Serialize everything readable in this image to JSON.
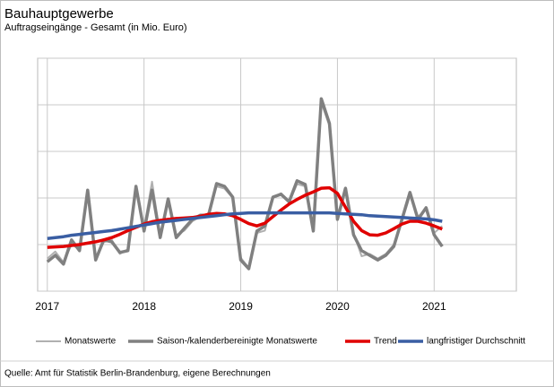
{
  "chart_data": {
    "type": "line",
    "title": "Bauhauptgewerbe",
    "subtitle": "Auftragseingänge - Gesamt (in Mio. Euro)",
    "source": "Quelle: Amt für Statistik Berlin-Brandenburg, eigene Berechnungen",
    "x": [
      2017,
      2017.083,
      2017.167,
      2017.25,
      2017.333,
      2017.417,
      2017.5,
      2017.583,
      2017.667,
      2017.75,
      2017.833,
      2017.917,
      2018,
      2018.083,
      2018.167,
      2018.25,
      2018.333,
      2018.417,
      2018.5,
      2018.583,
      2018.667,
      2018.75,
      2018.833,
      2018.917,
      2019,
      2019.083,
      2019.167,
      2019.25,
      2019.333,
      2019.417,
      2019.5,
      2019.583,
      2019.667,
      2019.75,
      2019.833,
      2019.917,
      2020,
      2020.083,
      2020.167,
      2020.25,
      2020.333,
      2020.417,
      2020.5,
      2020.583,
      2020.667,
      2020.75,
      2020.833,
      2020.917,
      2021,
      2021.083
    ],
    "series": [
      {
        "name": "Monatswerte",
        "color": "#b0b0b0",
        "width": 2,
        "values": [
          0.7,
          0.85,
          0.62,
          1.0,
          0.9,
          2.1,
          0.72,
          1.05,
          1.1,
          0.8,
          0.9,
          2.2,
          1.35,
          2.35,
          1.2,
          1.9,
          1.2,
          1.3,
          1.5,
          1.6,
          1.65,
          2.25,
          2.2,
          2.0,
          0.72,
          0.5,
          1.25,
          1.3,
          2.0,
          2.1,
          1.9,
          2.3,
          2.25,
          1.3,
          4.05,
          3.55,
          1.6,
          2.15,
          1.25,
          0.75,
          0.8,
          0.7,
          0.8,
          1.0,
          1.5,
          2.05,
          1.6,
          1.75,
          1.25,
          1.4
        ]
      },
      {
        "name": "Saison-/kalenderbereinigte Monatswerte",
        "color": "#808080",
        "width": 3.5,
        "values": [
          0.63,
          0.77,
          0.58,
          1.1,
          0.87,
          2.17,
          0.67,
          1.1,
          1.06,
          0.83,
          0.87,
          2.25,
          1.29,
          2.17,
          1.15,
          1.98,
          1.15,
          1.35,
          1.54,
          1.63,
          1.63,
          2.31,
          2.25,
          2.02,
          0.67,
          0.48,
          1.29,
          1.4,
          2.02,
          2.08,
          1.92,
          2.37,
          2.29,
          1.29,
          4.13,
          3.6,
          1.54,
          2.21,
          1.21,
          0.87,
          0.77,
          0.67,
          0.77,
          0.96,
          1.54,
          2.12,
          1.54,
          1.79,
          1.21,
          0.96
        ]
      },
      {
        "name": "Trend",
        "color": "#e00000",
        "width": 3.5,
        "values": [
          0.94,
          0.95,
          0.96,
          0.98,
          1.0,
          1.03,
          1.06,
          1.1,
          1.15,
          1.22,
          1.3,
          1.37,
          1.44,
          1.49,
          1.52,
          1.54,
          1.56,
          1.57,
          1.58,
          1.61,
          1.65,
          1.67,
          1.66,
          1.62,
          1.54,
          1.45,
          1.4,
          1.46,
          1.6,
          1.74,
          1.87,
          1.97,
          2.06,
          2.13,
          2.21,
          2.22,
          2.1,
          1.8,
          1.5,
          1.3,
          1.21,
          1.2,
          1.25,
          1.34,
          1.44,
          1.5,
          1.5,
          1.46,
          1.4,
          1.33
        ]
      },
      {
        "name": "langfristiger Durchschnitt",
        "color": "#3a5ea3",
        "width": 3.5,
        "values": [
          1.13,
          1.15,
          1.17,
          1.2,
          1.22,
          1.24,
          1.26,
          1.28,
          1.3,
          1.33,
          1.36,
          1.39,
          1.42,
          1.45,
          1.48,
          1.5,
          1.52,
          1.54,
          1.56,
          1.58,
          1.6,
          1.62,
          1.64,
          1.66,
          1.67,
          1.68,
          1.68,
          1.68,
          1.68,
          1.68,
          1.68,
          1.68,
          1.68,
          1.68,
          1.68,
          1.68,
          1.67,
          1.66,
          1.65,
          1.64,
          1.62,
          1.61,
          1.6,
          1.59,
          1.58,
          1.57,
          1.56,
          1.55,
          1.53,
          1.5
        ]
      }
    ],
    "xlim": [
      2016.9,
      2021.85
    ],
    "xticks": [
      2017,
      2018,
      2019,
      2020,
      2021
    ],
    "ylim": [
      0,
      5
    ],
    "yticks": [
      0,
      1,
      2,
      3,
      4,
      5
    ],
    "grid": true,
    "legend": "bottom"
  }
}
